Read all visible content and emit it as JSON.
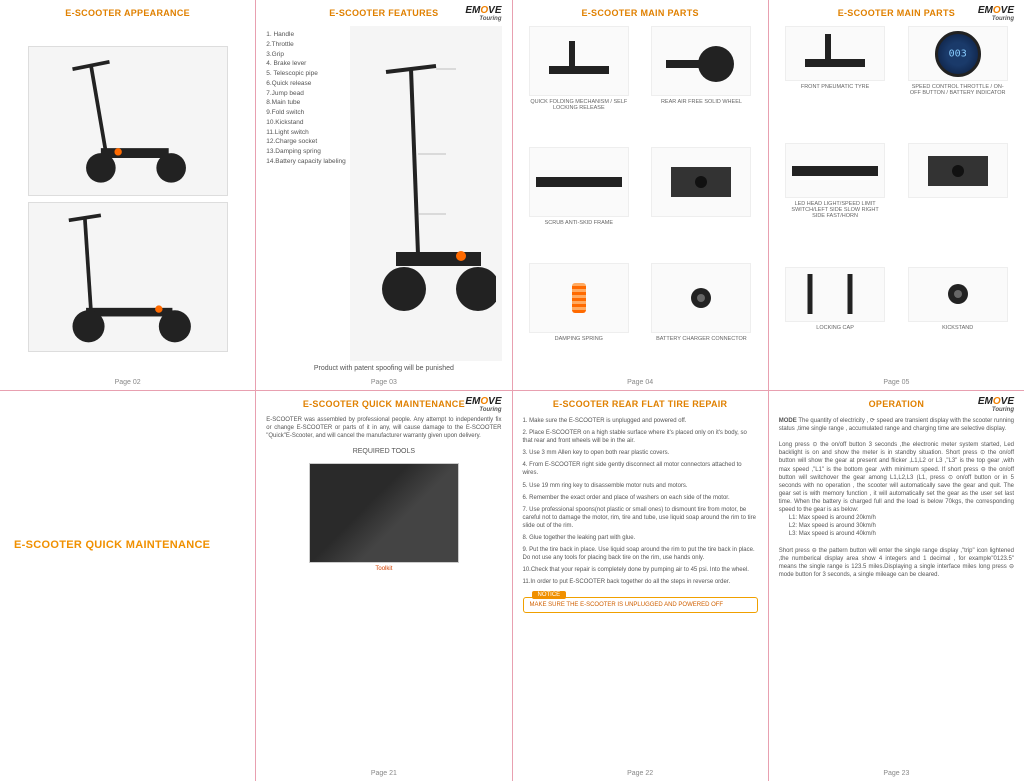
{
  "brand": {
    "name_pre": "EM",
    "name_o": "O",
    "name_post": "VE",
    "sub": "Touring"
  },
  "panels": {
    "p1": {
      "title": "E-SCOOTER APPEARANCE",
      "page": "Page 02"
    },
    "p2": {
      "title": "E-SCOOTER FEATURES",
      "page": "Page 03",
      "features": [
        "1. Handle",
        "2.Throttle",
        "3.Grip",
        "4. Brake lever",
        "5. Telescopic pipe",
        "6.Quick release",
        "7.Jump bead",
        "8.Main tube",
        "9.Fold switch",
        "10.Kickstand",
        "11.Light switch",
        "12.Charge socket",
        "13.Damping spring",
        "14.Battery capacity labeling"
      ],
      "notice": "Product with patent spoofing will be punished"
    },
    "p3": {
      "title": "E-SCOOTER MAIN PARTS",
      "page": "Page 04",
      "parts": [
        {
          "label": "QUICK FOLDING MECHANISM / SELF LOCKING RELEASE"
        },
        {
          "label": "REAR AIR FREE SOLID WHEEL"
        },
        {
          "label": "SCRUB ANTI-SKID FRAME"
        },
        {
          "label": ""
        },
        {
          "label": "DAMPING SPRING"
        },
        {
          "label": "BATTERY CHARGER CONNECTOR"
        }
      ]
    },
    "p4": {
      "title": "E-SCOOTER MAIN PARTS",
      "page": "Page 05",
      "parts": [
        {
          "label": "FRONT PNEUMATIC TYRE"
        },
        {
          "label": "SPEED CONTROL THROTTLE / ON-OFF BUTTON / BATTERY INDICATOR"
        },
        {
          "label": "LED HEAD LIGHT/SPEED LIMIT SWITCH/LEFT SIDE SLOW RIGHT SIDE FAST/HORN"
        },
        {
          "label": ""
        },
        {
          "label": "LOCKING CAP"
        },
        {
          "label": "KICKSTAND"
        }
      ]
    },
    "p5": {
      "title": "E-SCOOTER QUICK MAINTENANCE"
    },
    "p6": {
      "title": "E-SCOOTER QUICK MAINTENANCE",
      "page": "Page 21",
      "text": "E-SCOOTER was assembled by professional people. Any attempt to independently fix or change E-SCOOTER or parts of it in any, will cause damage to the E-SCOOTER \"Quick\"E-Scooter, and will cancel the manufacturer warranty given upon delivery.",
      "tools": "REQUIRED TOOLS",
      "toolcap": "Toolkit"
    },
    "p7": {
      "title": "E-SCOOTER REAR FLAT TIRE REPAIR",
      "page": "Page 22",
      "steps": [
        "1. Make sure the E-SCOOTER is unplugged and powered off.",
        "2. Place E-SCOOTER on a high stable surface where it's placed only on it's body, so that rear and front wheels will be in the air.",
        "3. Use 3 mm Allen key to open both rear plastic covers.",
        "4. From E-SCOOTER right side gently disconnect all motor connectors attached to wires.",
        "5. Use 19 mm ring key to disassemble motor nuts and motors.",
        "6. Remember the exact order and place of washers on each side of the motor.",
        "7. Use professional spoons(not plastic or small ones) to dismount tire from motor, be careful not to damage the motor, rim, tire and tube, use liquid soap around the rim to tire slide out of the rim.",
        "8. Glue together the leaking part with glue.",
        "9. Put the tire back in place. Use liquid soap around the rim to put the tire back in place. Do not use any tools for placing back tire on the rim, use hands only.",
        "10.Check that your repair is completely done by pumping air to 45 psi. Into the wheel.",
        "11.In order to put E-SCOOTER back together do all the steps in reverse order."
      ],
      "notice_tag": "NOTICE",
      "notice": "MAKE SURE THE E-SCOOTER IS UNPLUGGED AND POWERED OFF"
    },
    "p8": {
      "title": "OPERATION",
      "page": "Page 23",
      "intro_label": "MODE",
      "text1": "The quantity of electricity , ⟳ speed are transient display with the scooter running status ,time single range , accumulated range and charging time are selective display.",
      "text2": "Long press ⊙ the on/off button 3 seconds ,the electronic meter system started, Led backlight is on and show the meter is in standby situation. Short press ⊙ the on/off button will show the gear at present and flicker ,L1,L2 or L3 ,\"L3\" is the top gear ,with max speed ,\"L1\" is the bottom gear ,with minimum speed. If short press ⊖ the on/off button will switchover the gear among L1,L2,L3 (L1, press ⊙ on/off button or in 5 seconds with no operation , the scooter will automatically save the gear and quit. The gear set is with memory function , it will automatically set the gear as the user set last time.  When the battery is charged full and the load is below 70kgs, the corresponding speed to the gear is as below:",
      "speeds": [
        "L1: Max speed is around 20km/h",
        "L2: Max speed is around 30km/h",
        "L3: Max speed is around 40km/h"
      ],
      "text3": "Short press ⊖ the pattern button will enter the single range display ,\"trip\" icon lightened ,the numberical display area show 4 integers and 1 decimal , for example\"0123.5\" means the single range is 123.5 miles.Displaying a single interface miles long press ⊖ mode button for 3 seconds, a single mileage can be cleared."
    }
  }
}
